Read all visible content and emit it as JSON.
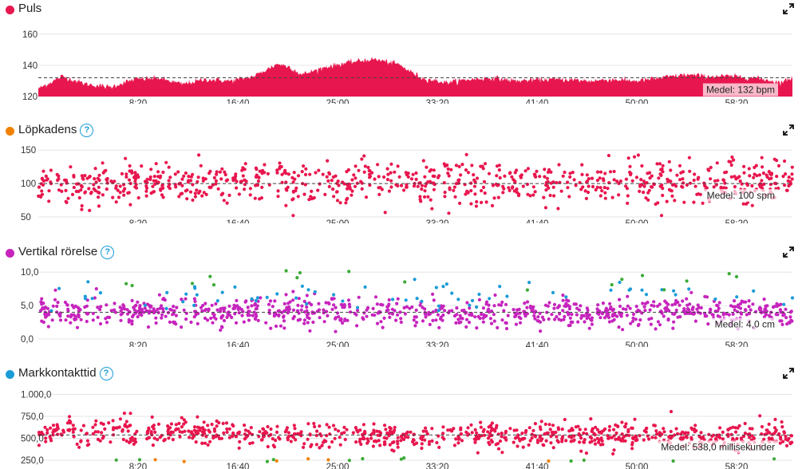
{
  "colors": {
    "puls": "#e8164e",
    "cadence_dot": "#f08100",
    "vertical_dot": "#c624bd",
    "contact_dot": "#1a9cd8",
    "green": "#3aaa35"
  },
  "icons": {
    "expand": "expand-arrows-icon",
    "help": "question-circle-icon"
  },
  "help_glyph": "?",
  "chart_data": [
    {
      "type": "area",
      "title": "Puls",
      "series_color": "#e8164e",
      "ylim": [
        120,
        165
      ],
      "y_ticks": [
        "160",
        "140",
        "120"
      ],
      "y_tick_values": [
        160,
        140,
        120
      ],
      "x_ticks": [
        "8:20",
        "16:40",
        "25:00",
        "33:20",
        "41:40",
        "50:00",
        "58:20"
      ],
      "x_tick_values": [
        500,
        1000,
        1500,
        2000,
        2500,
        3000,
        3500
      ],
      "xlim": [
        0,
        3780
      ],
      "average": 132,
      "average_label": "Medel: 132 bpm",
      "x": [
        0,
        120,
        240,
        360,
        480,
        600,
        720,
        840,
        960,
        1080,
        1200,
        1260,
        1320,
        1440,
        1560,
        1680,
        1800,
        1920,
        2040,
        2160,
        2280,
        2400,
        2520,
        2640,
        2760,
        2880,
        3000,
        3120,
        3240,
        3360,
        3480,
        3600,
        3720,
        3780
      ],
      "values": [
        125,
        133,
        128,
        126,
        131,
        132,
        128,
        131,
        130,
        133,
        141,
        139,
        134,
        139,
        142,
        144,
        141,
        132,
        129,
        131,
        132,
        130,
        131,
        131,
        130,
        131,
        130,
        132,
        134,
        133,
        133,
        132,
        129,
        132
      ]
    },
    {
      "type": "scatter",
      "title": "Löpkadens",
      "series_color": "#e8164e",
      "ylim": [
        50,
        155
      ],
      "y_ticks": [
        "150",
        "100",
        "50"
      ],
      "y_tick_values": [
        150,
        100,
        50
      ],
      "x_ticks": [
        "8:20",
        "16:40",
        "25:00",
        "33:20",
        "41:40",
        "50:00",
        "58:20"
      ],
      "x_tick_values": [
        500,
        1000,
        1500,
        2000,
        2500,
        3000,
        3500
      ],
      "xlim": [
        0,
        3780
      ],
      "average": 100,
      "average_label": "Medel: 100 spm",
      "trend_x": [
        0,
        400,
        800,
        1200,
        1600,
        2000,
        2400,
        2800,
        3200,
        3600,
        3780
      ],
      "trend_y": [
        98,
        100,
        101,
        103,
        102,
        101,
        99,
        100,
        100,
        100,
        104
      ],
      "spread": 38,
      "point_count": 850
    },
    {
      "type": "scatter",
      "title": "Vertikal rörelse",
      "series_color": "#c624bd",
      "ylim": [
        0,
        10.5
      ],
      "y_ticks": [
        "10,0",
        "5,0",
        "0,0"
      ],
      "y_tick_values": [
        10,
        5,
        0
      ],
      "x_ticks": [
        "8:20",
        "16:40",
        "25:00",
        "33:20",
        "41:40",
        "50:00",
        "58:20"
      ],
      "x_tick_values": [
        500,
        1000,
        1500,
        2000,
        2500,
        3000,
        3500
      ],
      "xlim": [
        0,
        3780
      ],
      "average": 4.0,
      "average_label": "Medel: 4,0 cm",
      "trend_x": [
        0,
        400,
        800,
        1200,
        1600,
        2000,
        2400,
        2800,
        3200,
        3600,
        3780
      ],
      "trend_y": [
        4.0,
        4.1,
        3.9,
        4.2,
        4.3,
        3.9,
        3.8,
        4.0,
        4.1,
        4.0,
        3.8
      ],
      "spread": 2.4,
      "point_count": 880,
      "blue_count": 70,
      "green_count": 18
    },
    {
      "type": "scatter",
      "title": "Markkontakttid",
      "series_color": "#e8164e",
      "ylim": [
        250,
        1050
      ],
      "y_ticks": [
        "1.000,0",
        "750,0",
        "500,0",
        "250,0"
      ],
      "y_tick_values": [
        1000,
        750,
        500,
        250
      ],
      "x_ticks": [
        "8:20",
        "16:40",
        "25:00",
        "33:20",
        "41:40",
        "50:00",
        "58:20"
      ],
      "x_tick_values": [
        500,
        1000,
        1500,
        2000,
        2500,
        3000,
        3500
      ],
      "xlim": [
        0,
        3780
      ],
      "average": 538,
      "average_label": "Medel: 538,0 millisekunder",
      "trend_x": [
        0,
        400,
        800,
        1200,
        1600,
        2000,
        2400,
        2800,
        3200,
        3600,
        3780
      ],
      "trend_y": [
        560,
        580,
        560,
        540,
        530,
        520,
        530,
        545,
        530,
        520,
        520
      ],
      "spread": 170,
      "point_count": 850,
      "orange_count": 6,
      "green_count": 12
    }
  ]
}
